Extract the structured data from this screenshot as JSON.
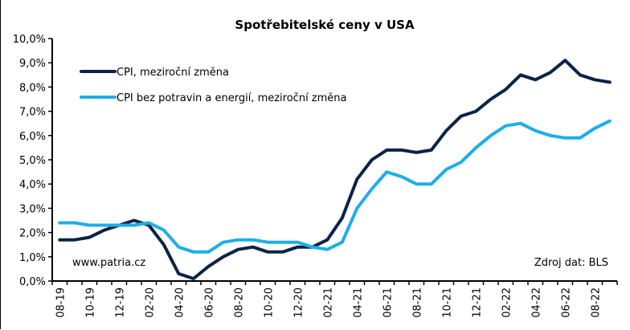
{
  "chart_data": {
    "type": "line",
    "title": "Spotřebitelské ceny v USA",
    "xlabel": "",
    "ylabel": "",
    "x": [
      "08-19",
      "09-19",
      "10-19",
      "11-19",
      "12-19",
      "01-20",
      "02-20",
      "03-20",
      "04-20",
      "05-20",
      "06-20",
      "07-20",
      "08-20",
      "09-20",
      "10-20",
      "11-20",
      "12-20",
      "01-21",
      "02-21",
      "03-21",
      "04-21",
      "05-21",
      "06-21",
      "07-21",
      "08-21",
      "09-21",
      "10-21",
      "11-21",
      "12-21",
      "01-22",
      "02-22",
      "03-22",
      "04-22",
      "05-22",
      "06-22",
      "07-22",
      "08-22",
      "09-22"
    ],
    "tick_labels": [
      "08-19",
      "10-19",
      "12-19",
      "02-20",
      "04-20",
      "06-20",
      "08-20",
      "10-20",
      "12-20",
      "02-21",
      "04-21",
      "06-21",
      "08-21",
      "10-21",
      "12-21",
      "02-22",
      "04-22",
      "06-22",
      "08-22"
    ],
    "ylim": [
      0,
      10
    ],
    "yticks": [
      "0,0%",
      "1,0%",
      "2,0%",
      "3,0%",
      "4,0%",
      "5,0%",
      "6,0%",
      "7,0%",
      "8,0%",
      "9,0%",
      "10,0%"
    ],
    "grid": false,
    "legend_position": "top-left",
    "series": [
      {
        "name": "CPI, meziroční změna",
        "color": "#0b2346",
        "values": [
          1.7,
          1.7,
          1.8,
          2.1,
          2.3,
          2.5,
          2.3,
          1.5,
          0.3,
          0.1,
          0.6,
          1.0,
          1.3,
          1.4,
          1.2,
          1.2,
          1.4,
          1.4,
          1.7,
          2.6,
          4.2,
          5.0,
          5.4,
          5.4,
          5.3,
          5.4,
          6.2,
          6.8,
          7.0,
          7.5,
          7.9,
          8.5,
          8.3,
          8.6,
          9.1,
          8.5,
          8.3,
          8.2
        ]
      },
      {
        "name": "CPI bez potravin a energií, meziroční změna",
        "color": "#1eaee8",
        "values": [
          2.4,
          2.4,
          2.3,
          2.3,
          2.3,
          2.3,
          2.4,
          2.1,
          1.4,
          1.2,
          1.2,
          1.6,
          1.7,
          1.7,
          1.6,
          1.6,
          1.6,
          1.4,
          1.3,
          1.6,
          3.0,
          3.8,
          4.5,
          4.3,
          4.0,
          4.0,
          4.6,
          4.9,
          5.5,
          6.0,
          6.4,
          6.5,
          6.2,
          6.0,
          5.9,
          5.9,
          6.3,
          6.6
        ]
      }
    ],
    "annotations": {
      "source_left": "www.patria.cz",
      "source_right": "Zdroj dat: BLS"
    }
  }
}
